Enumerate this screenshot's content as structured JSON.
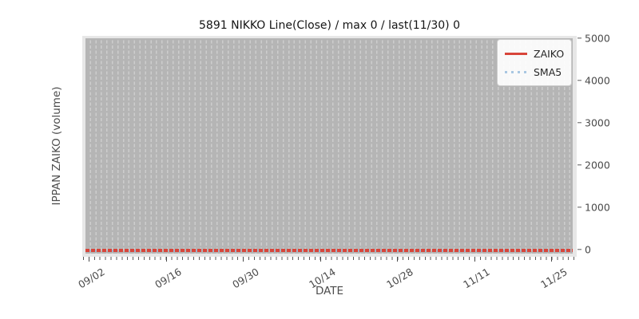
{
  "chart_data": {
    "type": "line",
    "title": "5891 NIKKO Line(Close) / max 0 / last(11/30) 0",
    "xlabel": "DATE",
    "ylabel": "IPPAN ZAIKO (volume)",
    "x_tick_labels": [
      "09/02",
      "09/16",
      "09/30",
      "10/14",
      "10/28",
      "11/11",
      "11/25"
    ],
    "y_tick_labels": [
      "0",
      "1000",
      "2000",
      "3000",
      "4000",
      "5000"
    ],
    "ylim": [
      0,
      5000
    ],
    "x_range": [
      "09/01",
      "11/30"
    ],
    "x_frequency": "daily",
    "grid": "vertical dashed gridlines, one per day",
    "legend_position": "upper right",
    "series": [
      {
        "name": "ZAIKO",
        "style": "solid",
        "color": "#d8453a",
        "constant_value": 0,
        "max": 0,
        "last_value": 0,
        "last_date": "11/30"
      },
      {
        "name": "SMA5",
        "style": "dotted",
        "color": "#a9c7e2",
        "constant_value": 0
      }
    ]
  },
  "colors": {
    "figure_background": "#ffffff",
    "axes_background": "#e7e7e7",
    "plot_fill": "#b5b5b5",
    "gridline": "#cdcdcd",
    "tick_text": "#4a4a4a",
    "title_text": "#151515",
    "zaiko_red": "#d8453a",
    "sma5_blue": "#a9c7e2"
  }
}
